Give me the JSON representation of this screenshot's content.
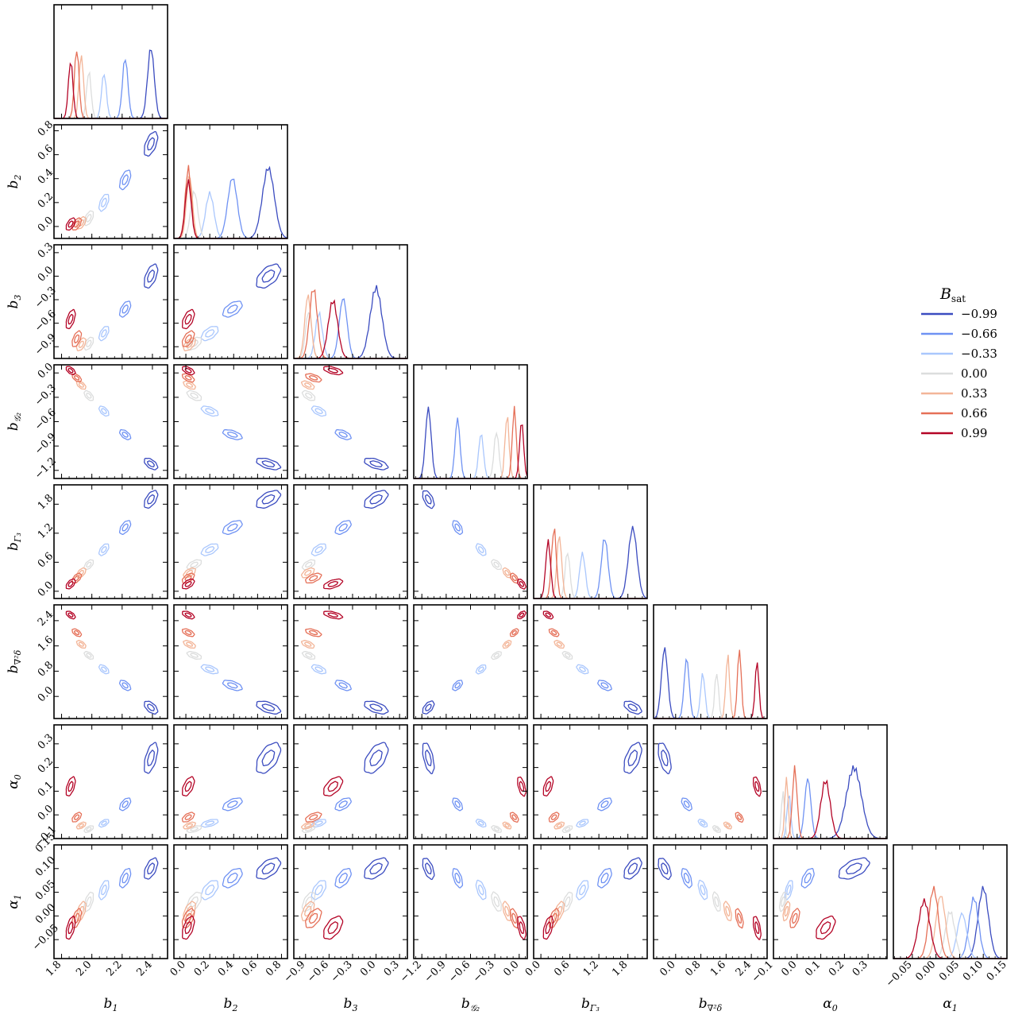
{
  "chart_data": {
    "type": "corner",
    "grid": false,
    "legend_placement": "right",
    "legend": {
      "title": "B",
      "title_subscript": "sat"
    },
    "parameters": [
      {
        "base": "b",
        "sub": "1",
        "ticks": [
          1.8,
          2.0,
          2.2,
          2.4
        ],
        "tick_labels": [
          "1.8",
          "2.0",
          "2.2",
          "2.4"
        ],
        "range": [
          1.75,
          2.5
        ]
      },
      {
        "base": "b",
        "sub": "2",
        "ticks": [
          0.0,
          0.2,
          0.4,
          0.6,
          0.8
        ],
        "tick_labels": [
          "0.0",
          "0.2",
          "0.4",
          "0.6",
          "0.8"
        ],
        "range": [
          -0.1,
          0.85
        ]
      },
      {
        "base": "b",
        "sub": "3",
        "ticks": [
          -0.9,
          -0.6,
          -0.3,
          0.0,
          0.3
        ],
        "tick_labels": [
          "−0.9",
          "−0.6",
          "−0.3",
          "0.0",
          "0.3"
        ],
        "range": [
          -1.05,
          0.4
        ]
      },
      {
        "base": "b",
        "sub": "𝒢₂",
        "ticks": [
          -1.2,
          -0.9,
          -0.6,
          -0.3,
          0.0
        ],
        "tick_labels": [
          "−1.2",
          "−0.9",
          "−0.6",
          "−0.3",
          "0.0"
        ],
        "range": [
          -1.3,
          0.1
        ]
      },
      {
        "base": "b",
        "sub": "Γ₃",
        "ticks": [
          0.0,
          0.6,
          1.2,
          1.8
        ],
        "tick_labels": [
          "0.0",
          "0.6",
          "1.2",
          "1.8"
        ],
        "range": [
          -0.15,
          2.2
        ]
      },
      {
        "base": "b",
        "sub": "∇²δ",
        "ticks": [
          0.0,
          0.8,
          1.6,
          2.4
        ],
        "tick_labels": [
          "0.0",
          "0.8",
          "1.6",
          "2.4"
        ],
        "range": [
          -0.7,
          2.9
        ]
      },
      {
        "base": "α",
        "sub": "0",
        "ticks": [
          -0.1,
          0.0,
          0.1,
          0.2,
          0.3
        ],
        "tick_labels": [
          "−0.1",
          "0.0",
          "0.1",
          "0.2",
          "0.3"
        ],
        "range": [
          -0.1,
          0.38
        ]
      },
      {
        "base": "α",
        "sub": "1",
        "ticks": [
          -0.05,
          0.0,
          0.05,
          0.1,
          0.15
        ],
        "tick_labels": [
          "−0.05",
          "0.00",
          "0.05",
          "0.10",
          "0.15"
        ],
        "range": [
          -0.09,
          0.15
        ]
      }
    ],
    "series": [
      {
        "name": "−0.99",
        "B_sat": -0.99,
        "color": "#3b4cc0",
        "means": [
          2.39,
          0.69,
          0.0,
          -1.12,
          1.9,
          -0.35,
          0.24,
          0.1
        ],
        "sd": [
          0.022,
          0.05,
          0.075,
          0.035,
          0.09,
          0.1,
          0.032,
          0.011
        ]
      },
      {
        "name": "−0.66",
        "B_sat": -0.66,
        "color": "#6f92f3",
        "means": [
          2.22,
          0.39,
          -0.42,
          -0.76,
          1.32,
          0.35,
          0.045,
          0.08
        ],
        "sd": [
          0.018,
          0.04,
          0.05,
          0.03,
          0.07,
          0.08,
          0.013,
          0.01
        ]
      },
      {
        "name": "−0.33",
        "B_sat": -0.33,
        "color": "#aac7fd",
        "means": [
          2.08,
          0.2,
          -0.73,
          -0.47,
          0.86,
          0.86,
          -0.035,
          0.055
        ],
        "sd": [
          0.016,
          0.035,
          0.045,
          0.03,
          0.06,
          0.07,
          0.008,
          0.01
        ]
      },
      {
        "name": "0.00",
        "B_sat": 0.0,
        "color": "#dcdddd",
        "means": [
          1.98,
          0.07,
          -0.86,
          -0.28,
          0.55,
          1.3,
          -0.06,
          0.03
        ],
        "sd": [
          0.015,
          0.03,
          0.04,
          0.03,
          0.05,
          0.06,
          0.007,
          0.01
        ]
      },
      {
        "name": "0.33",
        "B_sat": 0.33,
        "color": "#f3b598",
        "means": [
          1.93,
          0.03,
          -0.87,
          -0.15,
          0.38,
          1.65,
          -0.045,
          0.01
        ],
        "sd": [
          0.015,
          0.025,
          0.04,
          0.025,
          0.05,
          0.06,
          0.007,
          0.01
        ]
      },
      {
        "name": "0.66",
        "B_sat": 0.66,
        "color": "#e57058",
        "means": [
          1.9,
          0.02,
          -0.8,
          -0.06,
          0.27,
          2.02,
          -0.01,
          -0.005
        ],
        "sd": [
          0.015,
          0.025,
          0.05,
          0.025,
          0.05,
          0.06,
          0.01,
          0.01
        ]
      },
      {
        "name": "0.99",
        "B_sat": 0.99,
        "color": "#b40426",
        "means": [
          1.86,
          0.02,
          -0.55,
          0.03,
          0.15,
          2.58,
          0.12,
          -0.025
        ],
        "sd": [
          0.015,
          0.025,
          0.06,
          0.025,
          0.05,
          0.06,
          0.02,
          0.012
        ]
      }
    ]
  }
}
